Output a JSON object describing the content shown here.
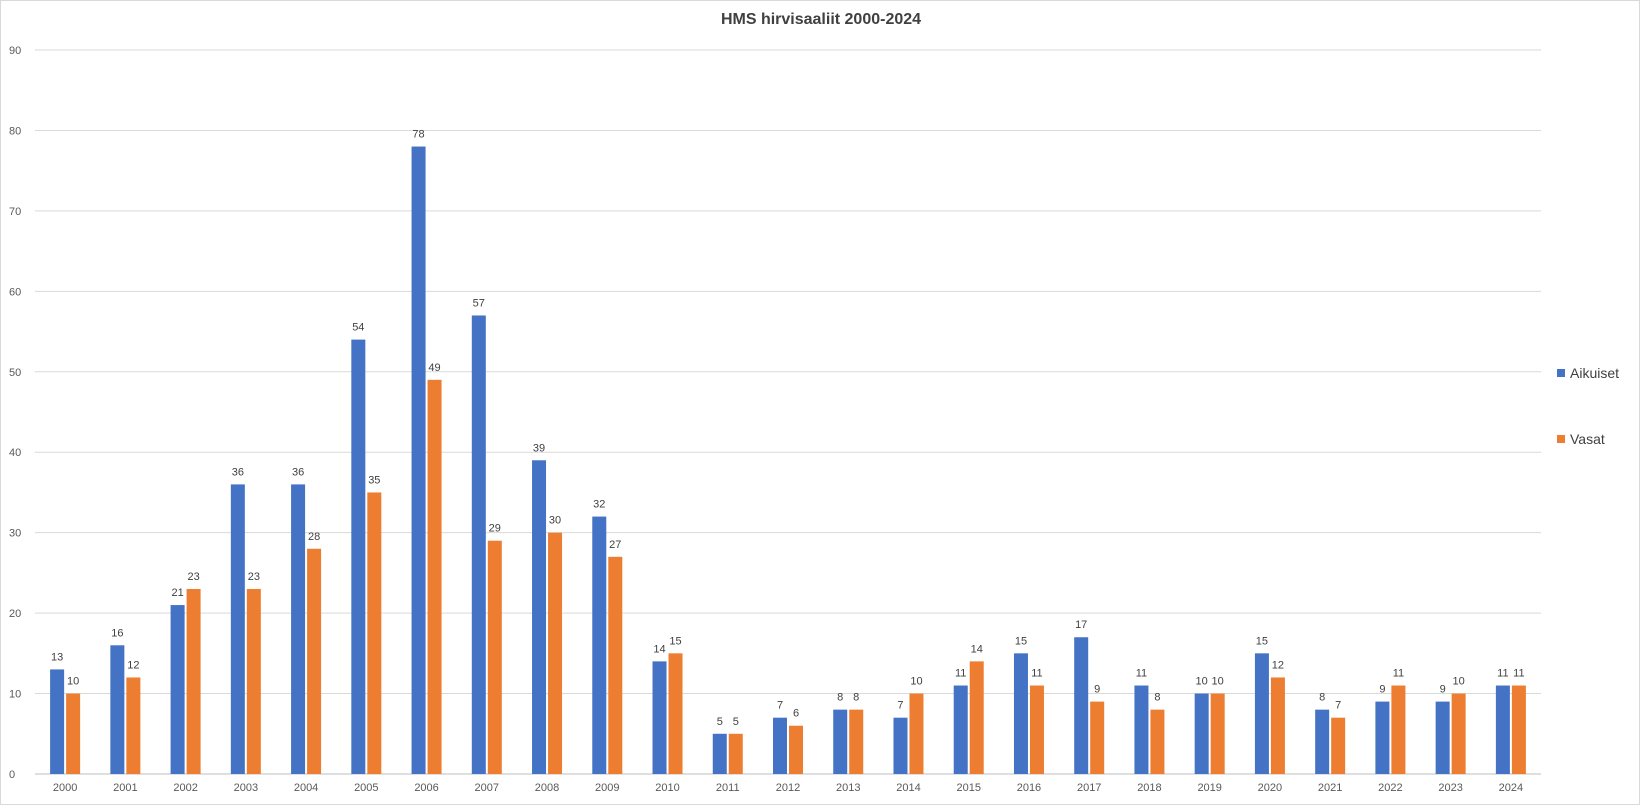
{
  "chart_data": {
    "type": "bar",
    "title": "HMS hirvisaaliit 2000-2024",
    "xlabel": "",
    "ylabel": "",
    "ylim": [
      0,
      90
    ],
    "yticks": [
      0,
      10,
      20,
      30,
      40,
      50,
      60,
      70,
      80,
      90
    ],
    "grid": true,
    "legend_position": "right",
    "categories": [
      "2000",
      "2001",
      "2002",
      "2003",
      "2004",
      "2005",
      "2006",
      "2007",
      "2008",
      "2009",
      "2010",
      "2011",
      "2012",
      "2013",
      "2014",
      "2015",
      "2016",
      "2017",
      "2018",
      "2019",
      "2020",
      "2021",
      "2022",
      "2023",
      "2024"
    ],
    "series": [
      {
        "name": "Aikuiset",
        "color": "#4472c4",
        "values": [
          13,
          16,
          21,
          36,
          36,
          54,
          78,
          57,
          39,
          32,
          14,
          5,
          7,
          8,
          7,
          11,
          15,
          17,
          11,
          10,
          15,
          8,
          9,
          9,
          11
        ]
      },
      {
        "name": "Vasat",
        "color": "#ed7d31",
        "values": [
          10,
          12,
          23,
          23,
          28,
          35,
          49,
          29,
          30,
          27,
          15,
          5,
          6,
          8,
          10,
          14,
          11,
          9,
          8,
          10,
          12,
          7,
          11,
          10,
          11
        ]
      }
    ]
  }
}
